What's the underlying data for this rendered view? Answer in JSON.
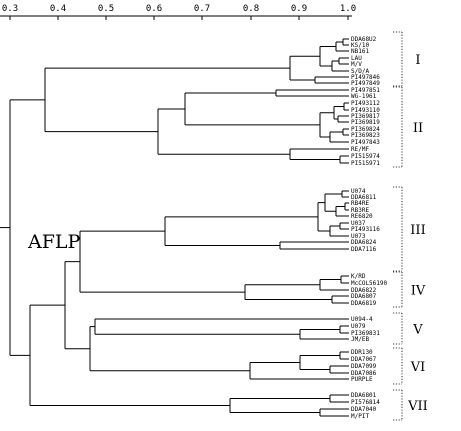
{
  "axis": {
    "ticks": [
      "0.3",
      "0.4",
      "0.5",
      "0.6",
      "0.7",
      "0.8",
      "0.9",
      "1.0"
    ]
  },
  "method_label": "AFLP",
  "leaves": [
    "DDA68U2",
    "KS/10",
    "NB161",
    "LAU",
    "M/V",
    "S/D/A",
    "PI497846",
    "PI497849",
    "PI497851",
    "WG-1961",
    "PI493112",
    "PI493110",
    "PI369817",
    "PI369819",
    "PI369824",
    "PI369823",
    "PI497843",
    "RE/MF",
    "PI515974",
    "PI515971",
    "U074",
    "DDA6811",
    "RB4RE",
    "RB3RE",
    "RE6820",
    "U037",
    "PI493116",
    "U073",
    "DDA6824",
    "DDA7116",
    "K/RD",
    "McCOL56190",
    "DDA6822",
    "DDA6807",
    "DDA6819",
    "U094-4",
    "U079",
    "PI369831",
    "JM/EB",
    "DDR130",
    "DDA7067",
    "DDA7099",
    "DDA7086",
    "PURPLE",
    "DDA6801",
    "PI576814",
    "DDA7040",
    "M/PIT"
  ],
  "groups": [
    "I",
    "II",
    "III",
    "IV",
    "V",
    "VI",
    "VII"
  ],
  "icons": {
    "dendrogram": "tree-diagram"
  }
}
